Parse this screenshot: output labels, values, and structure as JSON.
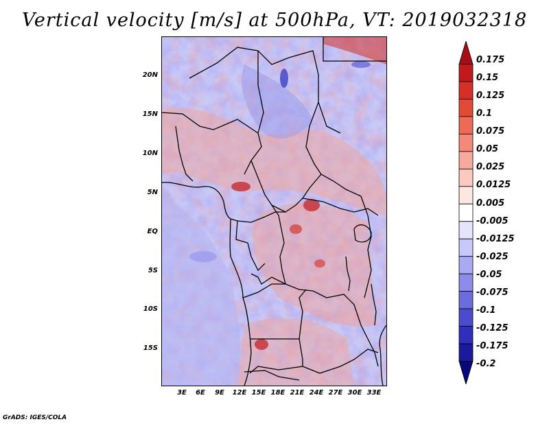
{
  "title": "Vertical velocity [m/s] at 500hPa, VT: 2019032318",
  "credit": "GrADS: IGES/COLA",
  "y_axis": [
    "20N",
    "15N",
    "10N",
    "5N",
    "EQ",
    "5S",
    "10S",
    "15S"
  ],
  "x_axis": [
    "3E",
    "6E",
    "9E",
    "12E",
    "15E",
    "18E",
    "21E",
    "24E",
    "27E",
    "30E",
    "33E"
  ],
  "colorbar": {
    "labels": [
      "0.175",
      "0.15",
      "0.125",
      "0.1",
      "0.075",
      "0.05",
      "0.025",
      "0.0125",
      "0.005",
      "-0.005",
      "-0.0125",
      "-0.025",
      "-0.05",
      "-0.075",
      "-0.1",
      "-0.125",
      "-0.175",
      "-0.2"
    ],
    "colors": [
      "#a50f15",
      "#c2191c",
      "#d62f27",
      "#e34a33",
      "#ee6a56",
      "#f4897a",
      "#f8a99e",
      "#fcc9c1",
      "#fde7e3",
      "#ffffff",
      "#e4e4fd",
      "#c8c8fa",
      "#a9a9f4",
      "#8c8cec",
      "#6c6cdf",
      "#4b4bd0",
      "#2f2fbd",
      "#1a1a9e",
      "#08087a"
    ]
  }
}
